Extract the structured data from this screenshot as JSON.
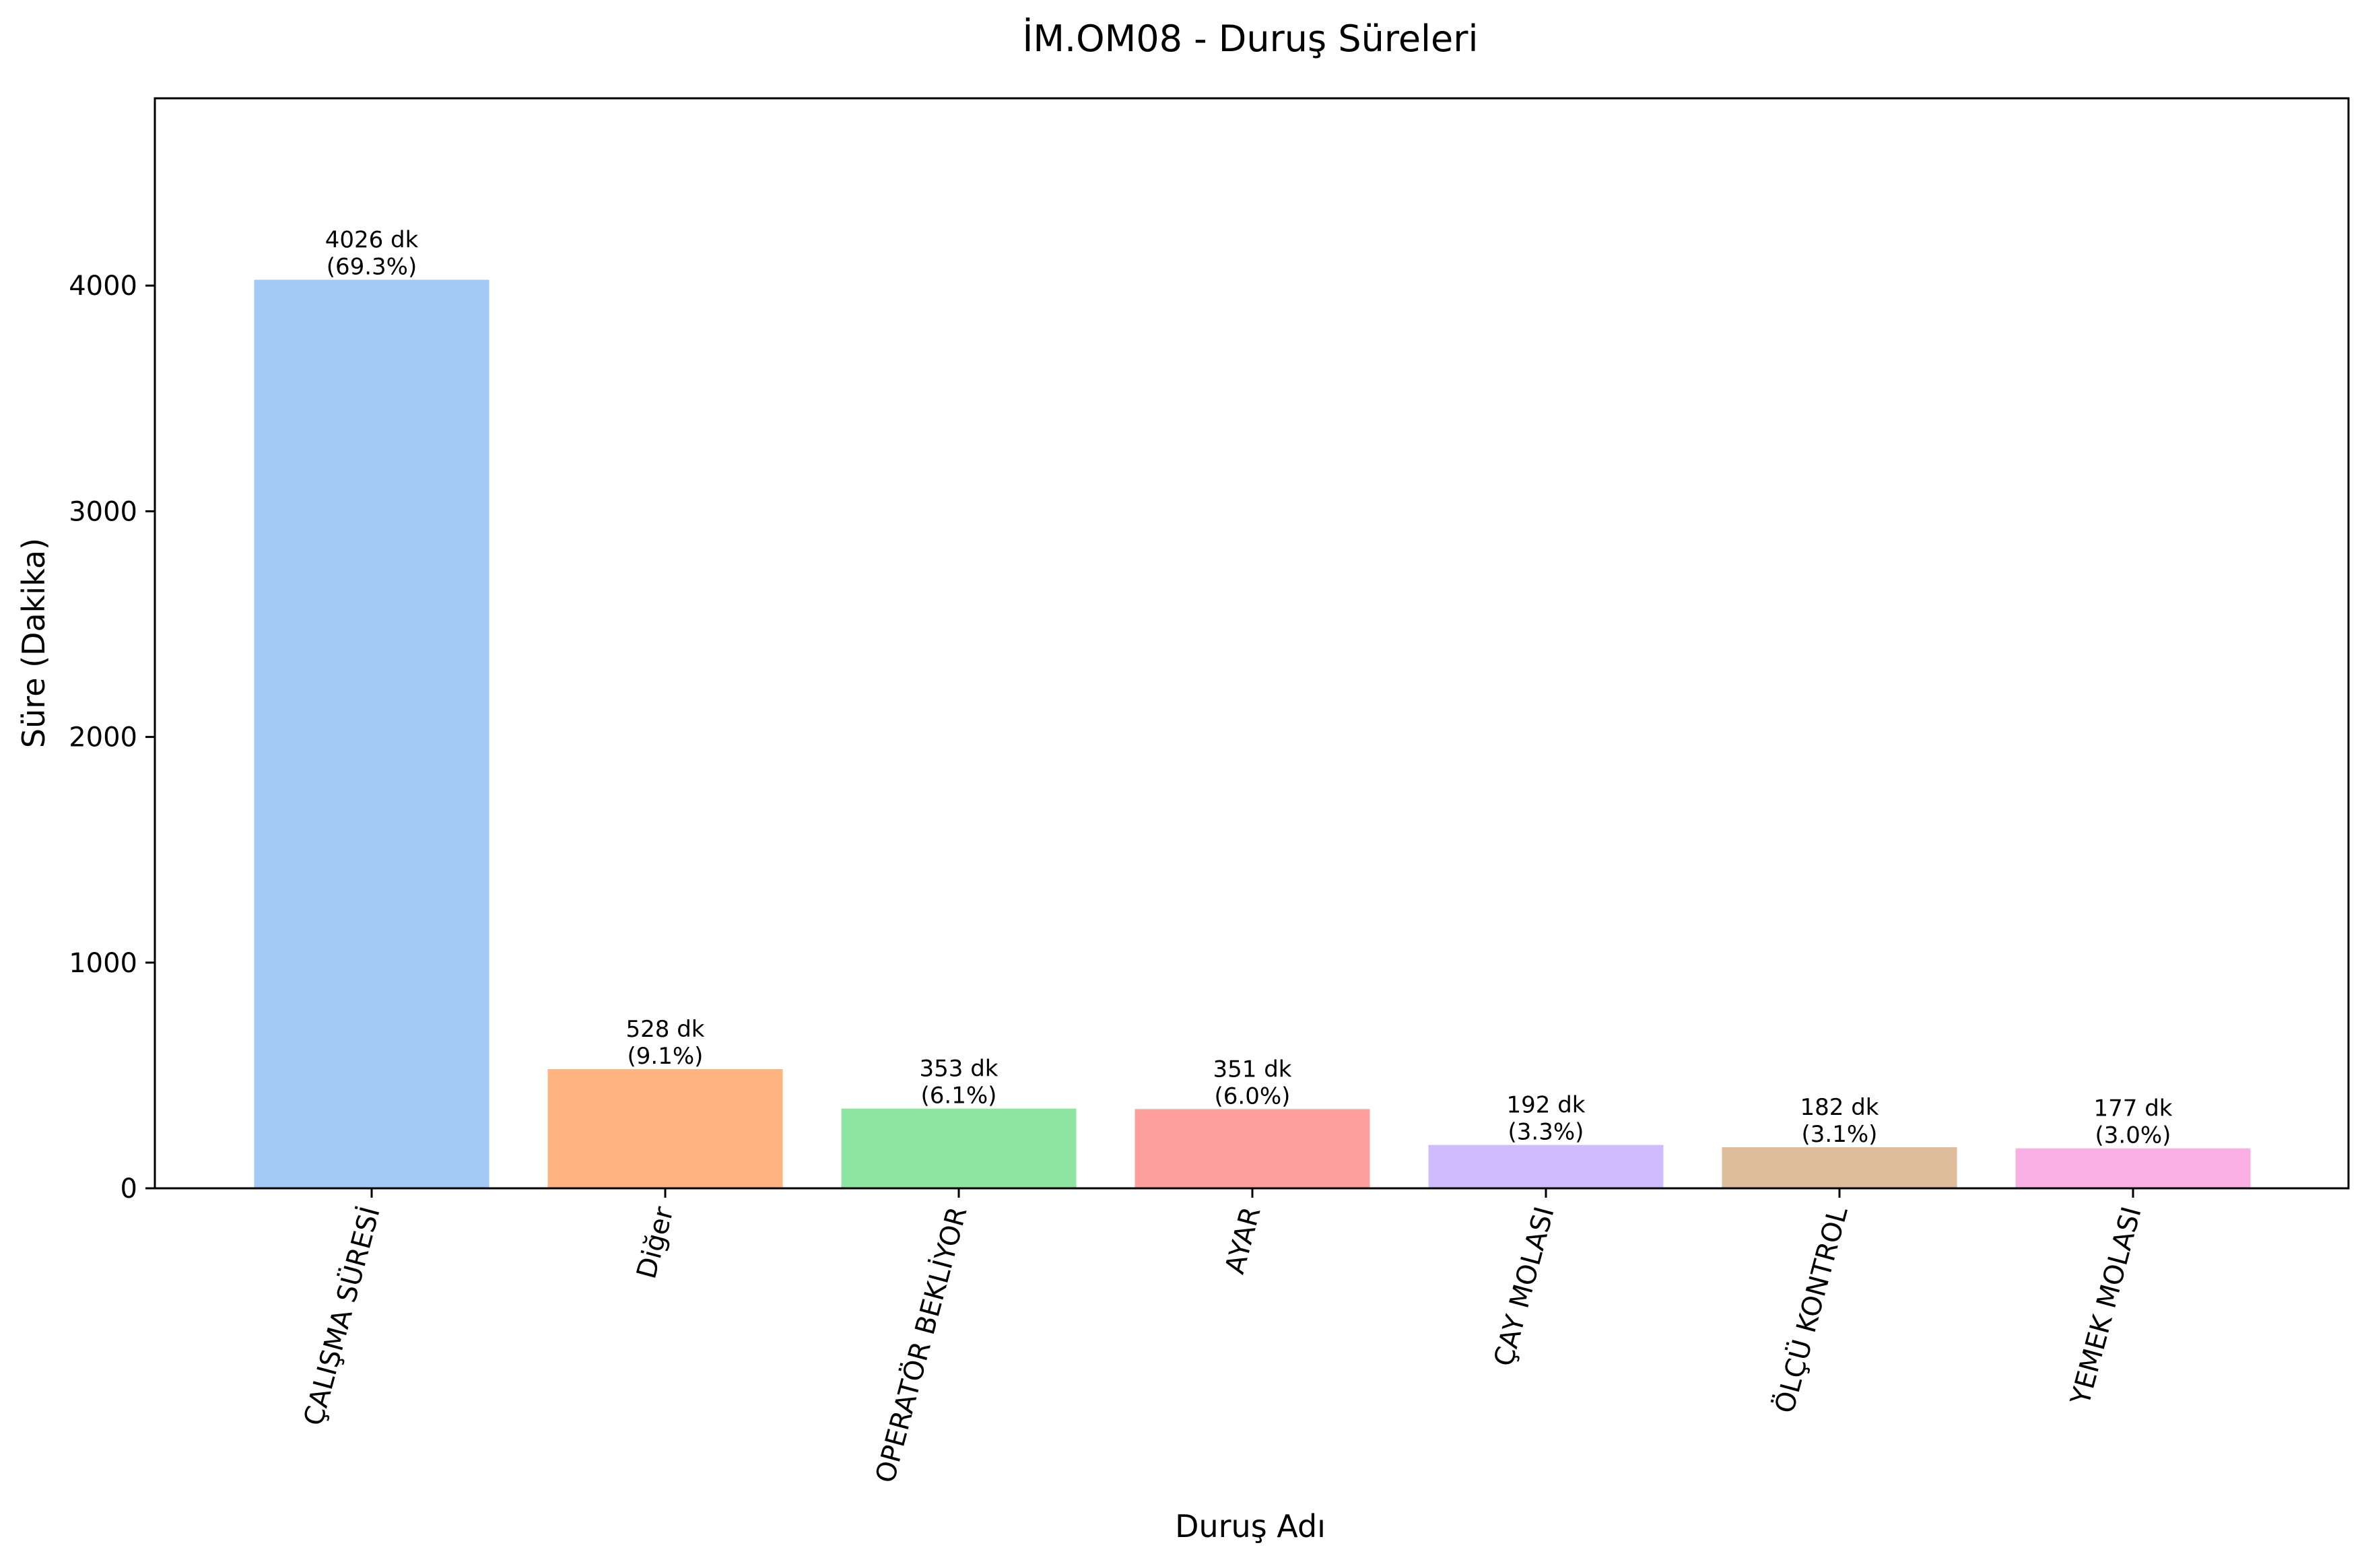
{
  "chart_data": {
    "type": "bar",
    "title": "İM.OM08 - Duruş Süreleri",
    "xlabel": "Duruş Adı",
    "ylabel": "Süre (Dakika)",
    "ylim": [
      0,
      4830
    ],
    "yticks": [
      0,
      1000,
      2000,
      3000,
      4000
    ],
    "categories": [
      "ÇALIŞMA SÜRESİ",
      "Diğer",
      "OPERATÖR BEKLİYOR",
      "AYAR",
      "ÇAY MOLASI",
      "ÖLÇÜ KONTROL",
      "YEMEK MOLASI"
    ],
    "values": [
      4026,
      528,
      353,
      351,
      192,
      182,
      177
    ],
    "labels": [
      [
        "4026 dk",
        "(69.3%)"
      ],
      [
        "528 dk",
        "(9.1%)"
      ],
      [
        "353 dk",
        "(6.1%)"
      ],
      [
        "351 dk",
        "(6.0%)"
      ],
      [
        "192 dk",
        "(3.3%)"
      ],
      [
        "182 dk",
        "(3.1%)"
      ],
      [
        "177 dk",
        "(3.0%)"
      ]
    ],
    "colors": [
      "#a1c9f4",
      "#ffb482",
      "#8de5a1",
      "#ff9f9b",
      "#d0bbff",
      "#debb9b",
      "#fab0e4"
    ],
    "grid": false,
    "legend": "none"
  }
}
